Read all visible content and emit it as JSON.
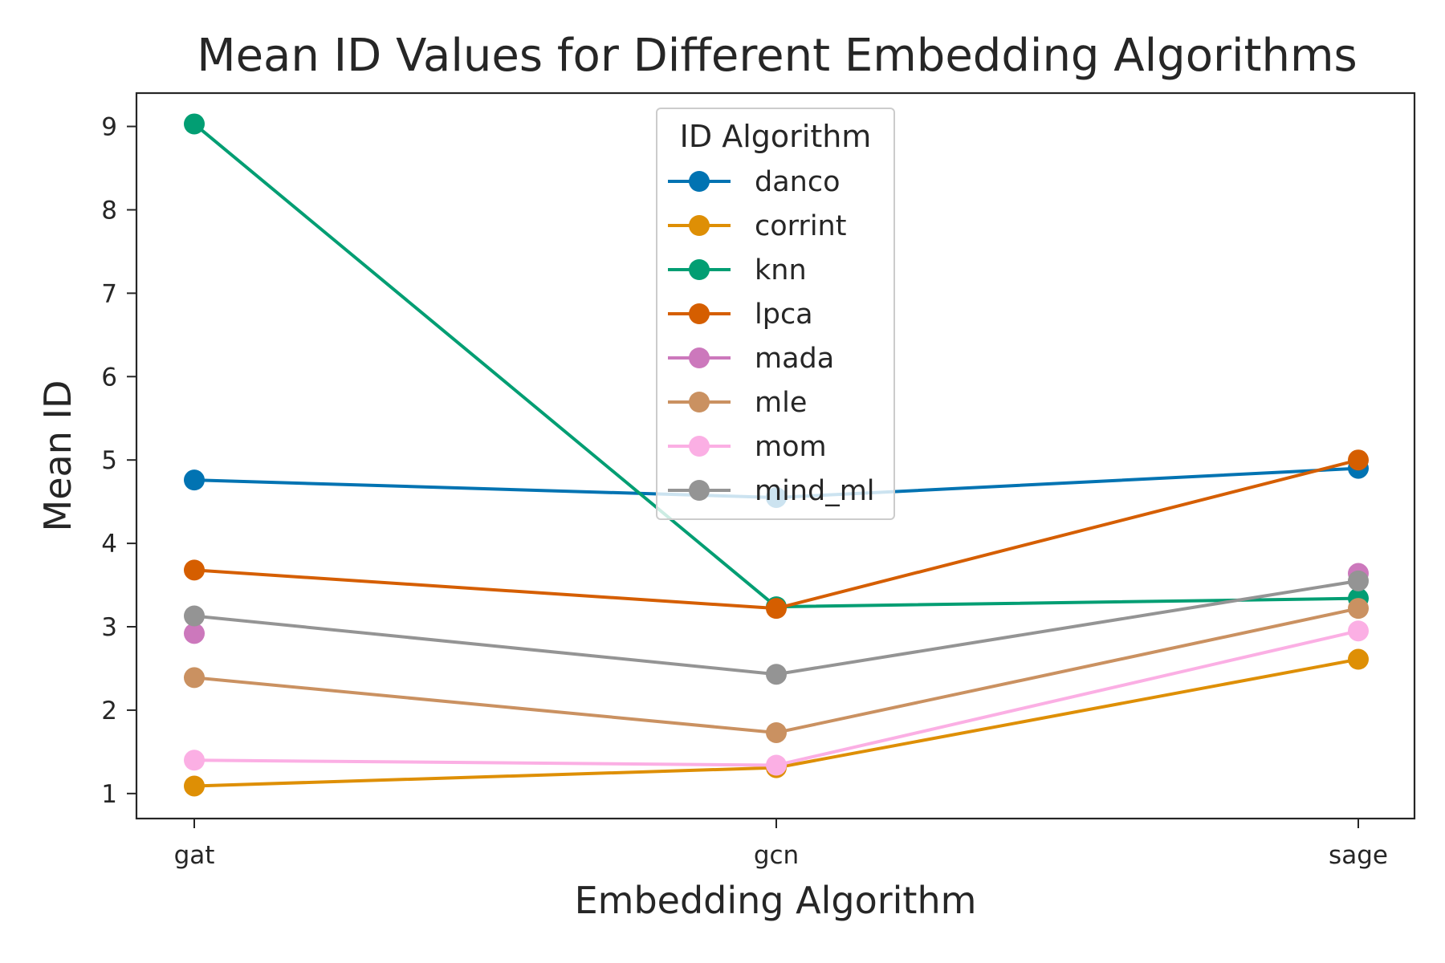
{
  "chart_data": {
    "type": "line",
    "title": "Mean ID Values for Different Embedding Algorithms",
    "xlabel": "Embedding Algorithm",
    "ylabel": "Mean ID",
    "categories": [
      "gat",
      "gcn",
      "sage"
    ],
    "yticks": [
      "1",
      "2",
      "3",
      "4",
      "5",
      "6",
      "7",
      "8",
      "9"
    ],
    "ylim": [
      0.7,
      9.4
    ],
    "grid": false,
    "legend": {
      "title": "ID Algorithm",
      "placement": "upper center"
    },
    "series": [
      {
        "name": "danco",
        "color": "#0173b2",
        "values": [
          4.76,
          4.55,
          4.9
        ]
      },
      {
        "name": "corrint",
        "color": "#de8f05",
        "values": [
          1.09,
          1.31,
          2.61
        ]
      },
      {
        "name": "knn",
        "color": "#029e73",
        "values": [
          9.03,
          3.24,
          3.34
        ]
      },
      {
        "name": "lpca",
        "color": "#d55e00",
        "values": [
          3.68,
          3.22,
          5.0
        ]
      },
      {
        "name": "mada",
        "color": "#cc78bc",
        "values": [
          2.92,
          null,
          3.64
        ]
      },
      {
        "name": "mle",
        "color": "#ca9161",
        "values": [
          2.39,
          1.73,
          3.22
        ]
      },
      {
        "name": "mom",
        "color": "#fbafe4",
        "values": [
          1.4,
          1.34,
          2.95
        ]
      },
      {
        "name": "mind_ml",
        "color": "#949494",
        "values": [
          3.13,
          2.43,
          3.55
        ]
      }
    ]
  }
}
